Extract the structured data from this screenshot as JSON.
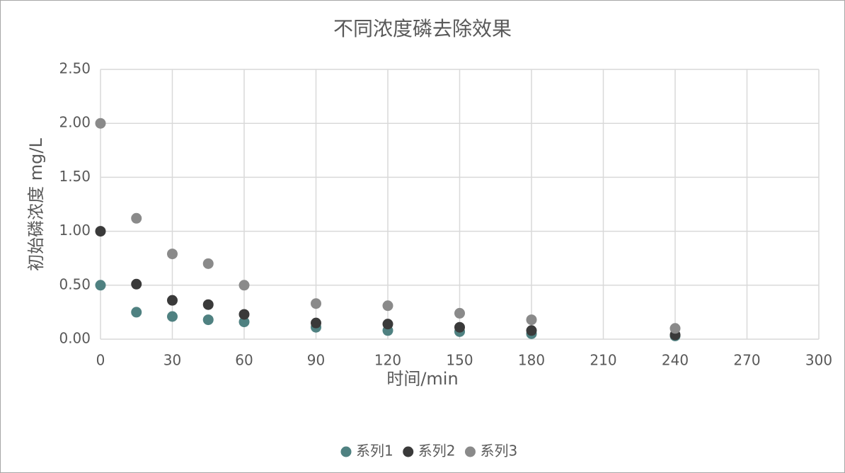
{
  "chart_data": {
    "type": "scatter",
    "title": "不同浓度磷去除效果",
    "x_label": "时间/min",
    "y_label": "初始磷浓度 mg/L",
    "x": [
      0,
      15,
      30,
      45,
      60,
      90,
      120,
      150,
      180,
      240
    ],
    "series": [
      {
        "name": "系列1",
        "color": "#4f8181",
        "values": [
          0.5,
          0.25,
          0.21,
          0.18,
          0.16,
          0.11,
          0.08,
          0.07,
          0.05,
          0.03
        ]
      },
      {
        "name": "系列2",
        "color": "#3a3a3a",
        "values": [
          1.0,
          0.51,
          0.36,
          0.32,
          0.23,
          0.15,
          0.14,
          0.11,
          0.08,
          0.04
        ]
      },
      {
        "name": "系列3",
        "color": "#8a8a8a",
        "values": [
          2.0,
          1.12,
          0.79,
          0.7,
          0.5,
          0.33,
          0.31,
          0.24,
          0.18,
          0.1
        ]
      }
    ],
    "xlim": [
      0,
      300
    ],
    "xticks": [
      0,
      30,
      60,
      90,
      120,
      150,
      180,
      210,
      240,
      270,
      300
    ],
    "ylim": [
      0,
      2.5
    ],
    "yticks": [
      {
        "value": 0,
        "label": "0.00"
      },
      {
        "value": 0.5,
        "label": "0.50"
      },
      {
        "value": 1,
        "label": "1.00"
      },
      {
        "value": 1.5,
        "label": "1.50"
      },
      {
        "value": 2,
        "label": "2.00"
      },
      {
        "value": 2.5,
        "label": "2.50"
      }
    ],
    "grid": true,
    "legend": "bottom"
  }
}
